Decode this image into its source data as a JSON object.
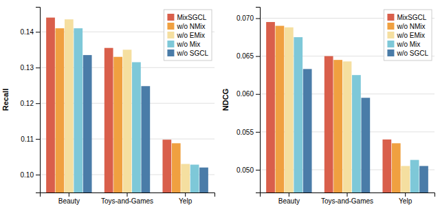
{
  "chart_data": [
    {
      "type": "bar",
      "ylabel": "Recall",
      "categories": [
        "Beauty",
        "Toys-and-Games",
        "Yelp"
      ],
      "series": [
        {
          "name": "MixSGCL",
          "color": "#d95f4b",
          "values": [
            0.144,
            0.1355,
            0.1098
          ]
        },
        {
          "name": "w/o NMix",
          "color": "#f0a040",
          "values": [
            0.141,
            0.133,
            0.1088
          ]
        },
        {
          "name": "w/o EMix",
          "color": "#f5dfa0",
          "values": [
            0.1435,
            0.135,
            0.103
          ]
        },
        {
          "name": "w/o Mix",
          "color": "#7ec8d8",
          "values": [
            0.141,
            0.1315,
            0.1028
          ]
        },
        {
          "name": "w/o SGCL",
          "color": "#4a7ca8",
          "values": [
            0.1335,
            0.1248,
            0.102
          ]
        }
      ],
      "ylim": [
        0.095,
        0.147
      ],
      "yticks": [
        {
          "value": 0.1,
          "label": "0.10"
        },
        0.11,
        0.12,
        0.13,
        0.14
      ],
      "grid": true,
      "legend": "upper right"
    },
    {
      "type": "bar",
      "ylabel": "NDCG",
      "categories": [
        "Beauty",
        "Toys-and-Games",
        "Yelp"
      ],
      "series": [
        {
          "name": "MixSGCL",
          "color": "#d95f4b",
          "values": [
            0.0695,
            0.065,
            0.054
          ]
        },
        {
          "name": "w/o NMix",
          "color": "#f0a040",
          "values": [
            0.069,
            0.0645,
            0.0535
          ]
        },
        {
          "name": "w/o EMix",
          "color": "#f5dfa0",
          "values": [
            0.0688,
            0.0643,
            0.0505
          ]
        },
        {
          "name": "w/o Mix",
          "color": "#7ec8d8",
          "values": [
            0.0675,
            0.0625,
            0.0513
          ]
        },
        {
          "name": "w/o SGCL",
          "color": "#4a7ca8",
          "values": [
            0.0633,
            0.0595,
            0.0505
          ]
        }
      ],
      "ylim": [
        0.047,
        0.0715
      ],
      "yticks": [
        {
          "value": 0.05,
          "label": "0.050"
        },
        0.055,
        {
          "value": 0.06,
          "label": "0.060"
        },
        0.065,
        {
          "value": 0.07,
          "label": "0.070"
        }
      ],
      "grid": true,
      "legend": "upper right"
    }
  ]
}
